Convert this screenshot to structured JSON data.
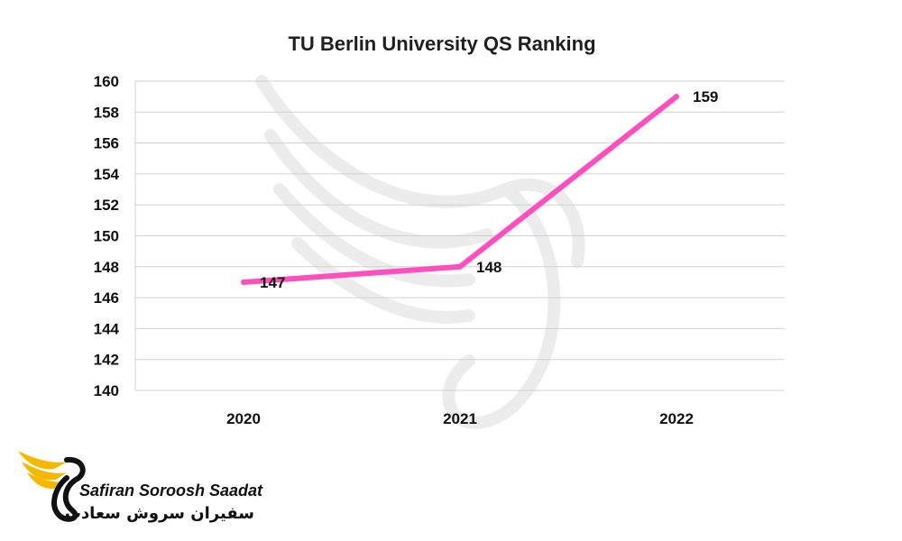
{
  "chart_data": {
    "type": "line",
    "title": "TU Berlin University QS Ranking",
    "xlabel": "",
    "ylabel": "",
    "categories": [
      "2020",
      "2021",
      "2022"
    ],
    "values": [
      147,
      148,
      159
    ],
    "data_labels": [
      "147",
      "148",
      "159"
    ],
    "ylim": [
      140,
      160
    ],
    "yticks": [
      140,
      142,
      144,
      146,
      148,
      150,
      152,
      154,
      156,
      158,
      160
    ],
    "grid": true,
    "legend": "none",
    "line_color": "#ff4fbf"
  },
  "branding": {
    "name_en": "Safiran Soroosh Saadat",
    "name_fa": "سفیران سروش سعادت",
    "logo_accent": "#f5b800",
    "logo_icon": "phoenix-wing-icon"
  }
}
